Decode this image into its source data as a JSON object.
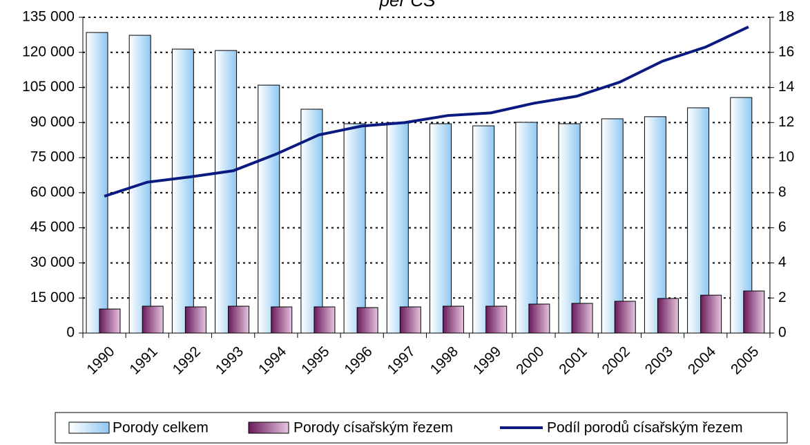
{
  "chart_data": {
    "type": "bar",
    "title": "per CS",
    "categories": [
      "1990",
      "1991",
      "1992",
      "1993",
      "1994",
      "1995",
      "1996",
      "1997",
      "1998",
      "1999",
      "2000",
      "2001",
      "2002",
      "2003",
      "2004",
      "2005"
    ],
    "series": [
      {
        "name": "Porody celkem",
        "color": "#8fc8f2",
        "values": [
          128500,
          127300,
          121400,
          120800,
          106000,
          95700,
          89500,
          90000,
          89500,
          88600,
          90100,
          89500,
          91600,
          92500,
          96300,
          100700
        ]
      },
      {
        "name": "Porody císařským řezem",
        "color": "#6a1a5a",
        "values": [
          10300,
          11500,
          11200,
          11500,
          11200,
          11200,
          10900,
          11200,
          11500,
          11500,
          12400,
          12700,
          13600,
          14800,
          16200,
          18000
        ]
      },
      {
        "name": "Podíl porodů císařským řezem",
        "color": "#0a1a80",
        "axis": "y2",
        "type": "line",
        "values": [
          7.8,
          8.6,
          8.9,
          9.25,
          10.2,
          11.3,
          11.8,
          12.0,
          12.4,
          12.55,
          13.1,
          13.5,
          14.3,
          15.5,
          16.3,
          17.45
        ]
      }
    ],
    "ylim": [
      0,
      135000
    ],
    "yticks": [
      0,
      {
        "value": 15000,
        "label": "15 000"
      },
      {
        "value": 30000,
        "label": "30 000"
      },
      {
        "value": 45000,
        "label": "45 000"
      },
      {
        "value": 60000,
        "label": "60 000"
      },
      {
        "value": 75000,
        "label": "75 000"
      },
      {
        "value": 90000,
        "label": "90 000"
      },
      {
        "value": 105000,
        "label": "105 000"
      },
      {
        "value": 120000,
        "label": "120 000"
      },
      {
        "value": 135000,
        "label": "135 000"
      }
    ],
    "y2lim": [
      0,
      18
    ],
    "y2ticks": [
      0,
      2,
      4,
      6,
      8,
      10,
      12,
      14,
      16,
      18
    ],
    "grid": true,
    "legend": "bottom"
  }
}
